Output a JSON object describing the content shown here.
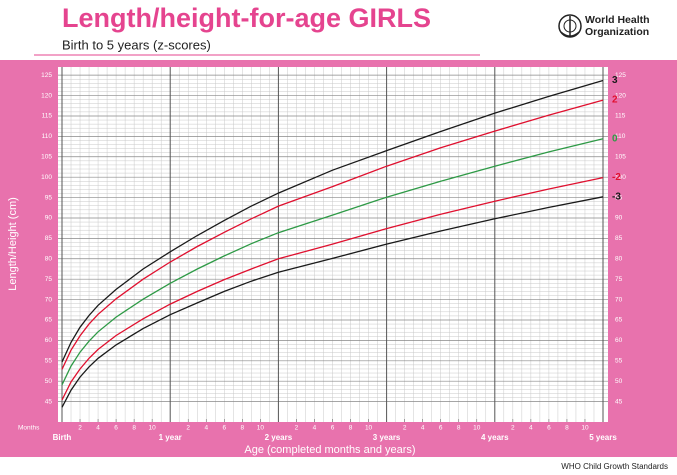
{
  "chart_data": {
    "type": "line",
    "title": "Length/height-for-age GIRLS",
    "subtitle": "Birth to 5 years (z-scores)",
    "organization": [
      "World Health",
      "Organization"
    ],
    "ylabel": "Length/Height (cm)",
    "xlabel": "Age (completed months and years)",
    "months_label": "Months",
    "footer": "WHO Child Growth Standards",
    "x": [
      0,
      1,
      2,
      3,
      4,
      6,
      9,
      12,
      15,
      18,
      21,
      24,
      30,
      36,
      42,
      48,
      54,
      60
    ],
    "series": [
      {
        "name": "3",
        "color": "#1a1a1a",
        "values": [
          54.7,
          59.5,
          63.2,
          66.1,
          68.6,
          72.5,
          77.5,
          81.7,
          85.7,
          89.4,
          92.9,
          96.1,
          101.7,
          106.5,
          111.2,
          115.7,
          119.8,
          123.7
        ]
      },
      {
        "name": "2",
        "color": "#e0102f",
        "values": [
          52.9,
          57.6,
          61.1,
          64.0,
          66.4,
          70.2,
          75.0,
          79.2,
          83.0,
          86.5,
          89.8,
          92.9,
          97.7,
          102.7,
          107.2,
          111.3,
          115.2,
          118.9
        ]
      },
      {
        "name": "0",
        "color": "#2e9a46",
        "values": [
          49.1,
          53.7,
          57.1,
          59.8,
          62.1,
          65.7,
          70.1,
          74.0,
          77.5,
          80.7,
          83.7,
          86.4,
          90.7,
          95.1,
          99.0,
          102.7,
          106.2,
          109.4
        ]
      },
      {
        "name": "-2",
        "color": "#e0102f",
        "values": [
          45.4,
          49.8,
          53.0,
          55.6,
          57.8,
          61.2,
          65.3,
          68.9,
          72.0,
          74.9,
          77.5,
          80.0,
          83.6,
          87.4,
          90.9,
          94.1,
          97.1,
          99.9
        ]
      },
      {
        "name": "-3",
        "color": "#1a1a1a",
        "values": [
          43.6,
          47.8,
          51.0,
          53.5,
          55.6,
          58.9,
          62.9,
          66.3,
          69.2,
          72.0,
          74.5,
          76.7,
          80.1,
          83.6,
          86.8,
          89.8,
          92.6,
          95.2
        ]
      }
    ],
    "xlim": [
      0,
      60
    ],
    "xticks": [
      {
        "value": 0,
        "label": "Birth"
      },
      {
        "value": 12,
        "label": "1 year"
      },
      {
        "value": 24,
        "label": "2 years"
      },
      {
        "value": 36,
        "label": "3 years"
      },
      {
        "value": 48,
        "label": "4 years"
      },
      {
        "value": 60,
        "label": "5 years"
      }
    ],
    "month_ticks": [
      2,
      4,
      6,
      8,
      10,
      {
        "value": 14,
        "label": "2"
      },
      {
        "value": 16,
        "label": "4"
      },
      {
        "value": 18,
        "label": "6"
      },
      {
        "value": 20,
        "label": "8"
      },
      {
        "value": 22,
        "label": "10"
      },
      {
        "value": 26,
        "label": "2"
      },
      {
        "value": 28,
        "label": "4"
      },
      {
        "value": 30,
        "label": "6"
      },
      {
        "value": 32,
        "label": "8"
      },
      {
        "value": 34,
        "label": "10"
      },
      {
        "value": 38,
        "label": "2"
      },
      {
        "value": 40,
        "label": "4"
      },
      {
        "value": 42,
        "label": "6"
      },
      {
        "value": 44,
        "label": "8"
      },
      {
        "value": 46,
        "label": "10"
      },
      {
        "value": 50,
        "label": "2"
      },
      {
        "value": 52,
        "label": "4"
      },
      {
        "value": 54,
        "label": "6"
      },
      {
        "value": 56,
        "label": "8"
      },
      {
        "value": 58,
        "label": "10"
      }
    ],
    "ylim": [
      40,
      127
    ],
    "yticks": [
      45,
      50,
      55,
      60,
      65,
      70,
      75,
      80,
      85,
      90,
      95,
      100,
      105,
      110,
      115,
      120,
      125
    ],
    "grid": true
  }
}
